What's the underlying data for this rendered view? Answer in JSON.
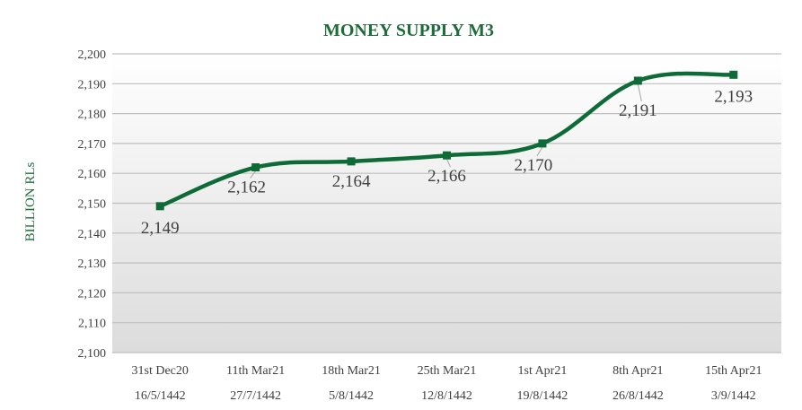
{
  "chart_data": {
    "type": "line",
    "title": "MONEY SUPPLY M3",
    "ylabel": "BILLION RLs",
    "xlabel": "",
    "ylim": [
      2100,
      2200
    ],
    "yticks": [
      "2,100",
      "2,110",
      "2,120",
      "2,130",
      "2,140",
      "2,150",
      "2,160",
      "2,170",
      "2,180",
      "2,190",
      "2,200"
    ],
    "categories": [
      {
        "line1": "31st Dec20",
        "line2": "16/5/1442"
      },
      {
        "line1": "11th Mar21",
        "line2": "27/7/1442"
      },
      {
        "line1": "18th Mar21",
        "line2": "5/8/1442"
      },
      {
        "line1": "25th Mar21",
        "line2": "12/8/1442"
      },
      {
        "line1": "1st Apr21",
        "line2": "19/8/1442"
      },
      {
        "line1": "8th Apr21",
        "line2": "26/8/1442"
      },
      {
        "line1": "15th Apr21",
        "line2": "3/9/1442"
      }
    ],
    "values": [
      2149,
      2162,
      2164,
      2166,
      2170,
      2191,
      2193
    ],
    "data_labels": [
      "2,149",
      "2,162",
      "2,164",
      "2,166",
      "2,170",
      "2,191",
      "2,193"
    ],
    "grid": true,
    "legend": "none",
    "colors": {
      "line": "#0e6b37",
      "title": "#1f6b3a",
      "grid": "#bfbfbf",
      "plot_top": "#ffffff",
      "plot_bottom": "#dcdcdc",
      "text": "#404040"
    }
  }
}
